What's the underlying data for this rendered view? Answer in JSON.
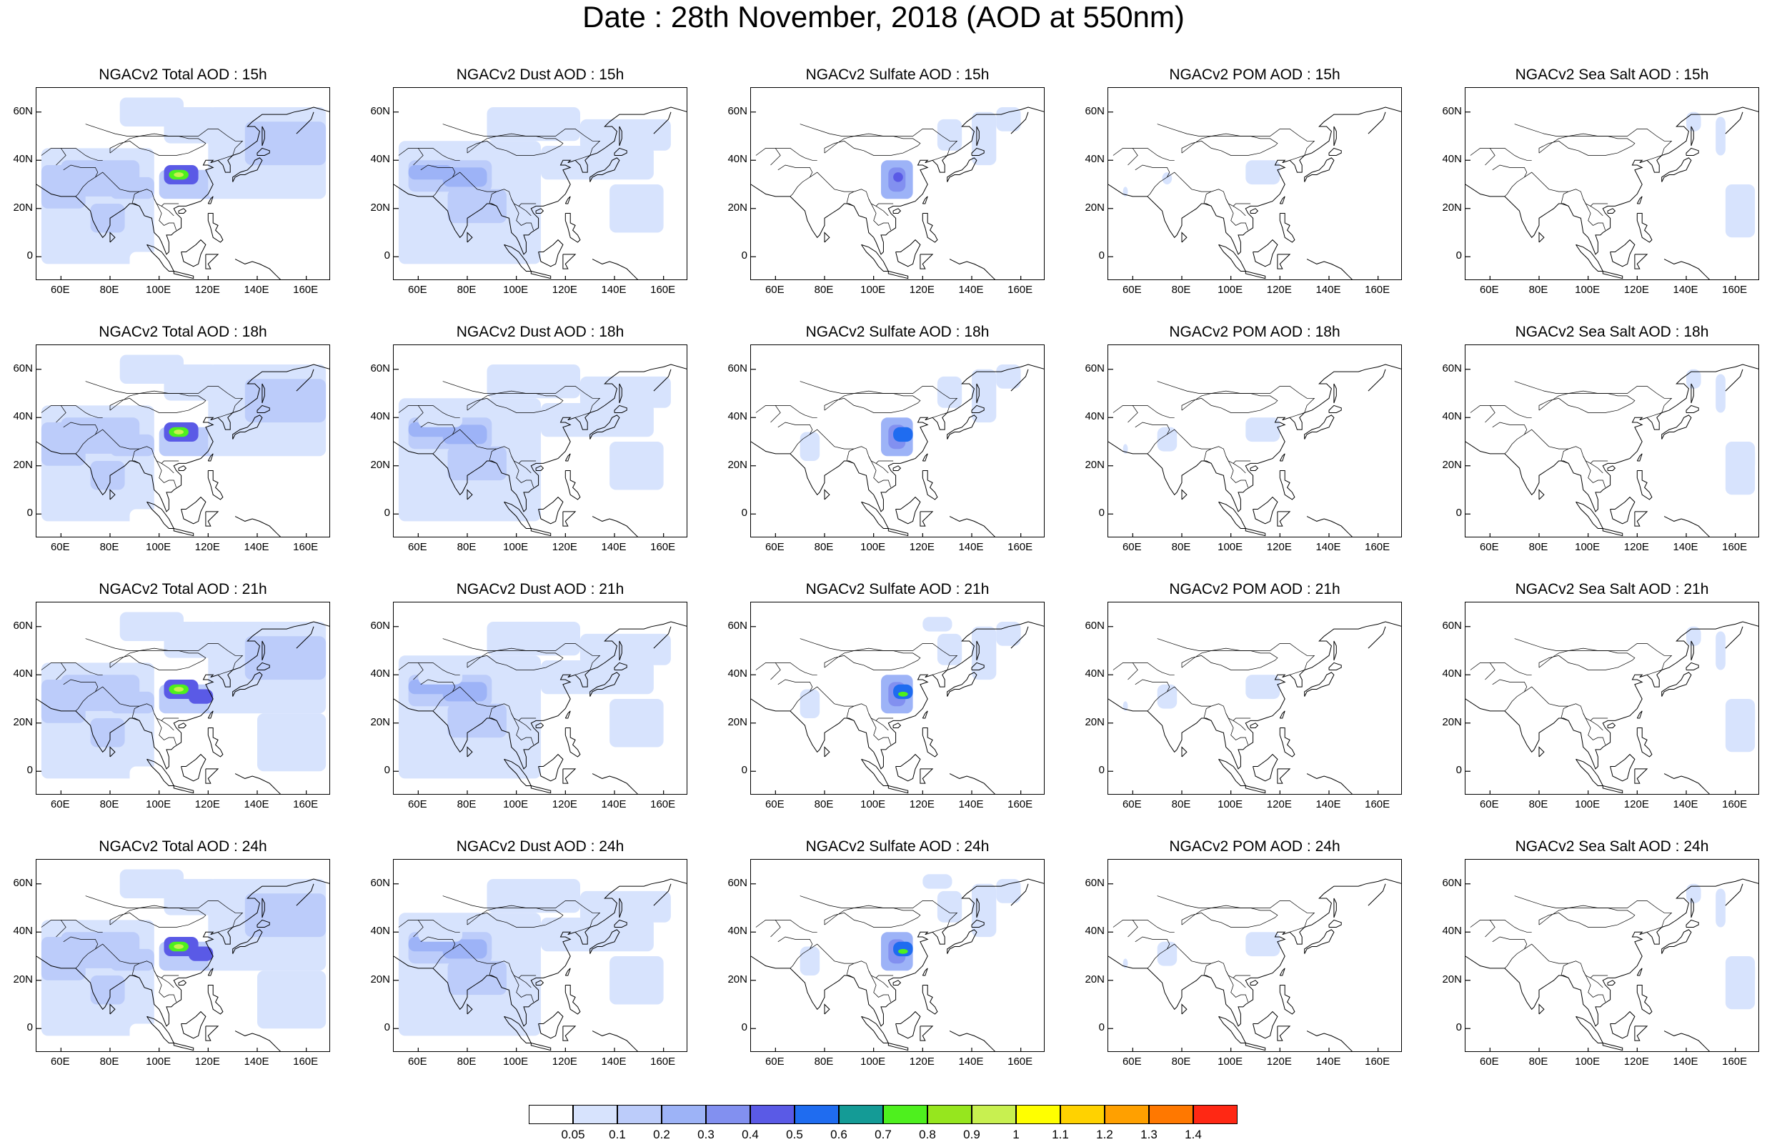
{
  "title": "Date : 28th November, 2018 (AOD at 550nm)",
  "hours": [
    "15h",
    "18h",
    "21h",
    "24h"
  ],
  "species": [
    "Total",
    "Dust",
    "Sulfate",
    "POM",
    "Sea Salt"
  ],
  "panel_titles": [
    [
      "NGACv2 Total AOD : 15h",
      "NGACv2 Dust AOD : 15h",
      "NGACv2 Sulfate AOD : 15h",
      "NGACv2 POM AOD : 15h",
      "NGACv2 Sea Salt AOD : 15h"
    ],
    [
      "NGACv2 Total AOD : 18h",
      "NGACv2 Dust AOD : 18h",
      "NGACv2 Sulfate AOD : 18h",
      "NGACv2 POM AOD : 18h",
      "NGACv2 Sea Salt AOD : 18h"
    ],
    [
      "NGACv2 Total AOD : 21h",
      "NGACv2 Dust AOD : 21h",
      "NGACv2 Sulfate AOD : 21h",
      "NGACv2 POM AOD : 21h",
      "NGACv2 Sea Salt AOD : 21h"
    ],
    [
      "NGACv2 Total AOD : 24h",
      "NGACv2 Dust AOD : 24h",
      "NGACv2 Sulfate AOD : 24h",
      "NGACv2 POM AOD : 24h",
      "NGACv2 Sea Salt  AOD : 24h"
    ]
  ],
  "map_extent": {
    "lon": [
      50,
      170
    ],
    "lat": [
      -10,
      70
    ]
  },
  "lat_ticks": [
    "60N",
    "40N",
    "20N",
    "0"
  ],
  "lat_values": [
    60,
    40,
    20,
    0
  ],
  "lon_ticks": [
    "60E",
    "80E",
    "100E",
    "120E",
    "140E",
    "160E"
  ],
  "lon_values": [
    60,
    80,
    100,
    120,
    140,
    160
  ],
  "colorbar": {
    "labels": [
      "0.05",
      "0.1",
      "0.2",
      "0.3",
      "0.4",
      "0.5",
      "0.6",
      "0.7",
      "0.8",
      "0.9",
      "1",
      "1.1",
      "1.2",
      "1.3",
      "1.4"
    ],
    "colors": [
      "#ffffff",
      "#d7e3fd",
      "#bcccfa",
      "#9db3f7",
      "#8290f0",
      "#5a5ae6",
      "#1f6cf0",
      "#149b96",
      "#4ef01e",
      "#96e61e",
      "#c8f050",
      "#ffff00",
      "#ffd200",
      "#ffa000",
      "#ff7800",
      "#ff2814"
    ]
  }
}
